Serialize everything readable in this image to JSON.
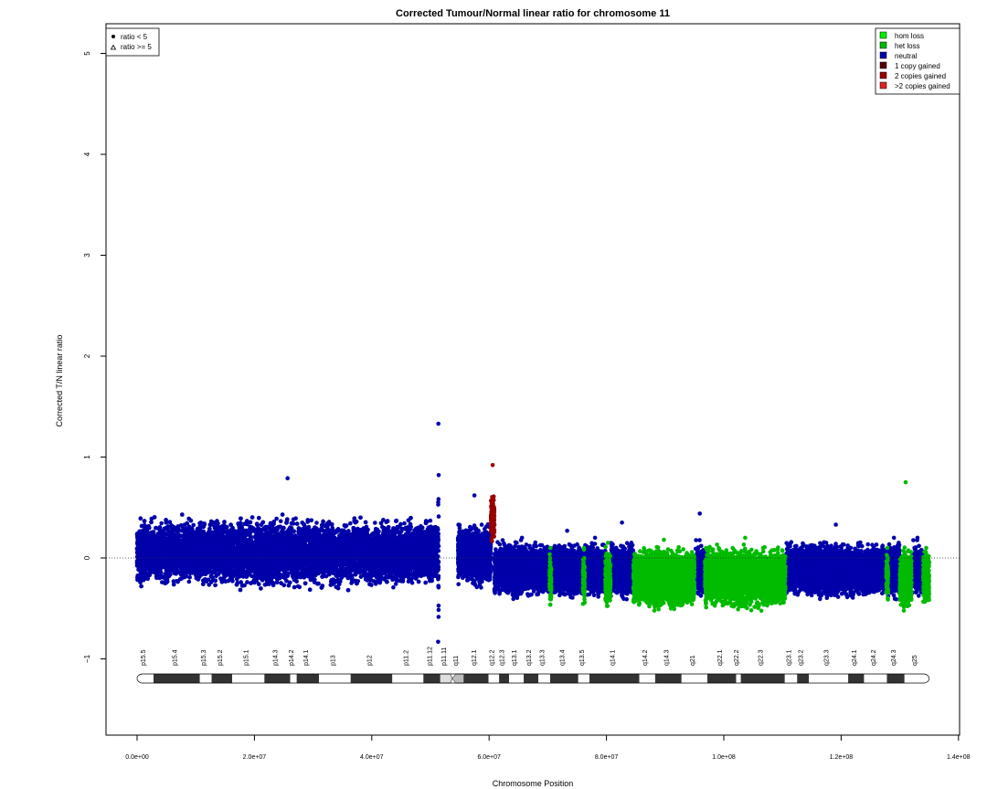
{
  "chart_data": {
    "type": "scatter",
    "title": "Corrected Tumour/Normal linear ratio for chromosome  11",
    "xlabel": "Chromosome Position",
    "ylabel": "Corrected T/N linear ratio",
    "xlim": [
      0,
      140000000
    ],
    "ylim": [
      -1.7,
      5.3
    ],
    "x_ticks": [
      {
        "value": 0,
        "label": "0.0e+00"
      },
      {
        "value": 20000000,
        "label": "2.0e+07"
      },
      {
        "value": 40000000,
        "label": "4.0e+07"
      },
      {
        "value": 60000000,
        "label": "6.0e+07"
      },
      {
        "value": 80000000,
        "label": "8.0e+07"
      },
      {
        "value": 100000000,
        "label": "1.0e+08"
      },
      {
        "value": 120000000,
        "label": "1.2e+08"
      },
      {
        "value": 140000000,
        "label": "1.4e+08"
      }
    ],
    "y_ticks": [
      {
        "value": -1,
        "label": "−1"
      },
      {
        "value": 0,
        "label": "0"
      },
      {
        "value": 1,
        "label": "1"
      },
      {
        "value": 2,
        "label": "2"
      },
      {
        "value": 3,
        "label": "3"
      },
      {
        "value": 4,
        "label": "4"
      },
      {
        "value": 5,
        "label": "5"
      }
    ],
    "reference_line": 0,
    "shape_legend": {
      "position": "top-left",
      "items": [
        {
          "symbol": "dot",
          "label": "ratio < 5"
        },
        {
          "symbol": "triangle",
          "label": "ratio >= 5"
        }
      ]
    },
    "legend": {
      "position": "top-right",
      "items": [
        {
          "label": "hom loss",
          "color": "#00ee00"
        },
        {
          "label": "het loss",
          "color": "#00bb00"
        },
        {
          "label": "neutral",
          "color": "#0000aa"
        },
        {
          "label": "1 copy gained",
          "color": "#550000"
        },
        {
          "label": "2 copies gained",
          "color": "#990000"
        },
        {
          "label": ">2 copies gained",
          "color": "#dd2222"
        }
      ]
    },
    "series": [
      {
        "name": "neutral",
        "color": "#0000aa",
        "segments": [
          {
            "x_start": 0,
            "x_end": 51300000,
            "mean": 0.05,
            "spread": 0.32,
            "max": 0.79
          },
          {
            "x_start": 51300000,
            "x_end": 51400000,
            "mean": 0.0,
            "spread": 0.85,
            "max": 1.33
          },
          {
            "x_start": 54700000,
            "x_end": 60300000,
            "mean": 0.03,
            "spread": 0.28,
            "max": 0.62
          },
          {
            "x_start": 60900000,
            "x_end": 70300000,
            "mean": -0.12,
            "spread": 0.25,
            "max": 0.2
          },
          {
            "x_start": 70600000,
            "x_end": 76000000,
            "mean": -0.12,
            "spread": 0.25,
            "max": 0.27
          },
          {
            "x_start": 76300000,
            "x_end": 79800000,
            "mean": -0.12,
            "spread": 0.25,
            "max": 0.2
          },
          {
            "x_start": 80700000,
            "x_end": 84600000,
            "mean": -0.12,
            "spread": 0.25,
            "max": 0.35
          },
          {
            "x_start": 95000000,
            "x_end": 96800000,
            "mean": -0.12,
            "spread": 0.25,
            "max": 0.44
          },
          {
            "x_start": 110500000,
            "x_end": 127700000,
            "mean": -0.12,
            "spread": 0.25,
            "max": 0.33
          },
          {
            "x_start": 128000000,
            "x_end": 130000000,
            "mean": -0.12,
            "spread": 0.25,
            "max": 0.2
          },
          {
            "x_start": 132000000,
            "x_end": 134000000,
            "mean": -0.12,
            "spread": 0.25,
            "max": 0.2
          }
        ]
      },
      {
        "name": "het loss",
        "color": "#00bb00",
        "segments": [
          {
            "x_start": 70300000,
            "x_end": 70600000,
            "mean": -0.2,
            "spread": 0.28,
            "max": 0.1
          },
          {
            "x_start": 76000000,
            "x_end": 76300000,
            "mean": -0.2,
            "spread": 0.28,
            "max": 0.1
          },
          {
            "x_start": 79800000,
            "x_end": 80700000,
            "mean": -0.2,
            "spread": 0.28,
            "max": 0.15
          },
          {
            "x_start": 84600000,
            "x_end": 95000000,
            "mean": -0.2,
            "spread": 0.28,
            "max": 0.18
          },
          {
            "x_start": 96800000,
            "x_end": 110500000,
            "mean": -0.2,
            "spread": 0.28,
            "max": 0.2
          },
          {
            "x_start": 127700000,
            "x_end": 128000000,
            "mean": -0.2,
            "spread": 0.28,
            "max": 0.1
          },
          {
            "x_start": 130000000,
            "x_end": 132000000,
            "mean": -0.2,
            "spread": 0.28,
            "max": 0.75
          },
          {
            "x_start": 134000000,
            "x_end": 135000000,
            "mean": -0.2,
            "spread": 0.28,
            "max": 0.1
          }
        ]
      },
      {
        "name": "2 copies gained",
        "color": "#990000",
        "segments": [
          {
            "x_start": 60300000,
            "x_end": 60900000,
            "mean": 0.4,
            "spread": 0.2,
            "max": 0.92
          }
        ]
      }
    ],
    "ideogram": {
      "bands": [
        {
          "name": "p15.5",
          "start": 0,
          "end": 2800000,
          "stain": "gneg"
        },
        {
          "name": "p15.4",
          "start": 2800000,
          "end": 10700000,
          "stain": "gpos"
        },
        {
          "name": "p15.3",
          "start": 10700000,
          "end": 12700000,
          "stain": "gneg"
        },
        {
          "name": "p15.2",
          "start": 12700000,
          "end": 16200000,
          "stain": "gpos"
        },
        {
          "name": "p15.1",
          "start": 16200000,
          "end": 21700000,
          "stain": "gneg"
        },
        {
          "name": "p14.3",
          "start": 21700000,
          "end": 26100000,
          "stain": "gpos"
        },
        {
          "name": "p14.2",
          "start": 26100000,
          "end": 27200000,
          "stain": "gneg"
        },
        {
          "name": "p14.1",
          "start": 27200000,
          "end": 31000000,
          "stain": "gpos"
        },
        {
          "name": "p13",
          "start": 31000000,
          "end": 36400000,
          "stain": "gneg"
        },
        {
          "name": "p12",
          "start": 36400000,
          "end": 43500000,
          "stain": "gpos"
        },
        {
          "name": "p11.2",
          "start": 43500000,
          "end": 48800000,
          "stain": "gneg"
        },
        {
          "name": "p11.12",
          "start": 48800000,
          "end": 51600000,
          "stain": "gpos"
        },
        {
          "name": "p11.11",
          "start": 51600000,
          "end": 53700000,
          "stain": "acen"
        },
        {
          "name": "q11",
          "start": 53700000,
          "end": 55700000,
          "stain": "stalk"
        },
        {
          "name": "q12.1",
          "start": 55700000,
          "end": 59900000,
          "stain": "gpos"
        },
        {
          "name": "q12.2",
          "start": 59900000,
          "end": 61700000,
          "stain": "gneg"
        },
        {
          "name": "q12.3",
          "start": 61700000,
          "end": 63400000,
          "stain": "gpos"
        },
        {
          "name": "q13.1",
          "start": 63400000,
          "end": 65900000,
          "stain": "gneg"
        },
        {
          "name": "q13.2",
          "start": 65900000,
          "end": 68400000,
          "stain": "gpos"
        },
        {
          "name": "q13.3",
          "start": 68400000,
          "end": 70400000,
          "stain": "gneg"
        },
        {
          "name": "q13.4",
          "start": 70400000,
          "end": 75200000,
          "stain": "gpos"
        },
        {
          "name": "q13.5",
          "start": 75200000,
          "end": 77100000,
          "stain": "gneg"
        },
        {
          "name": "q14.1",
          "start": 77100000,
          "end": 85600000,
          "stain": "gpos"
        },
        {
          "name": "q14.2",
          "start": 85600000,
          "end": 88300000,
          "stain": "gneg"
        },
        {
          "name": "q14.3",
          "start": 88300000,
          "end": 92800000,
          "stain": "gpos"
        },
        {
          "name": "q21",
          "start": 92800000,
          "end": 97200000,
          "stain": "gneg"
        },
        {
          "name": "q22.1",
          "start": 97200000,
          "end": 102100000,
          "stain": "gpos"
        },
        {
          "name": "q22.2",
          "start": 102100000,
          "end": 102900000,
          "stain": "gneg"
        },
        {
          "name": "q22.3",
          "start": 102900000,
          "end": 110400000,
          "stain": "gpos"
        },
        {
          "name": "q23.1",
          "start": 110400000,
          "end": 112500000,
          "stain": "gneg"
        },
        {
          "name": "q23.2",
          "start": 112500000,
          "end": 114500000,
          "stain": "gpos"
        },
        {
          "name": "q23.3",
          "start": 114500000,
          "end": 121200000,
          "stain": "gneg"
        },
        {
          "name": "q24.1",
          "start": 121200000,
          "end": 123900000,
          "stain": "gpos"
        },
        {
          "name": "q24.2",
          "start": 123900000,
          "end": 127800000,
          "stain": "gneg"
        },
        {
          "name": "q24.3",
          "start": 127800000,
          "end": 130800000,
          "stain": "gpos"
        },
        {
          "name": "q25",
          "start": 130800000,
          "end": 135000000,
          "stain": "gneg"
        }
      ]
    }
  }
}
